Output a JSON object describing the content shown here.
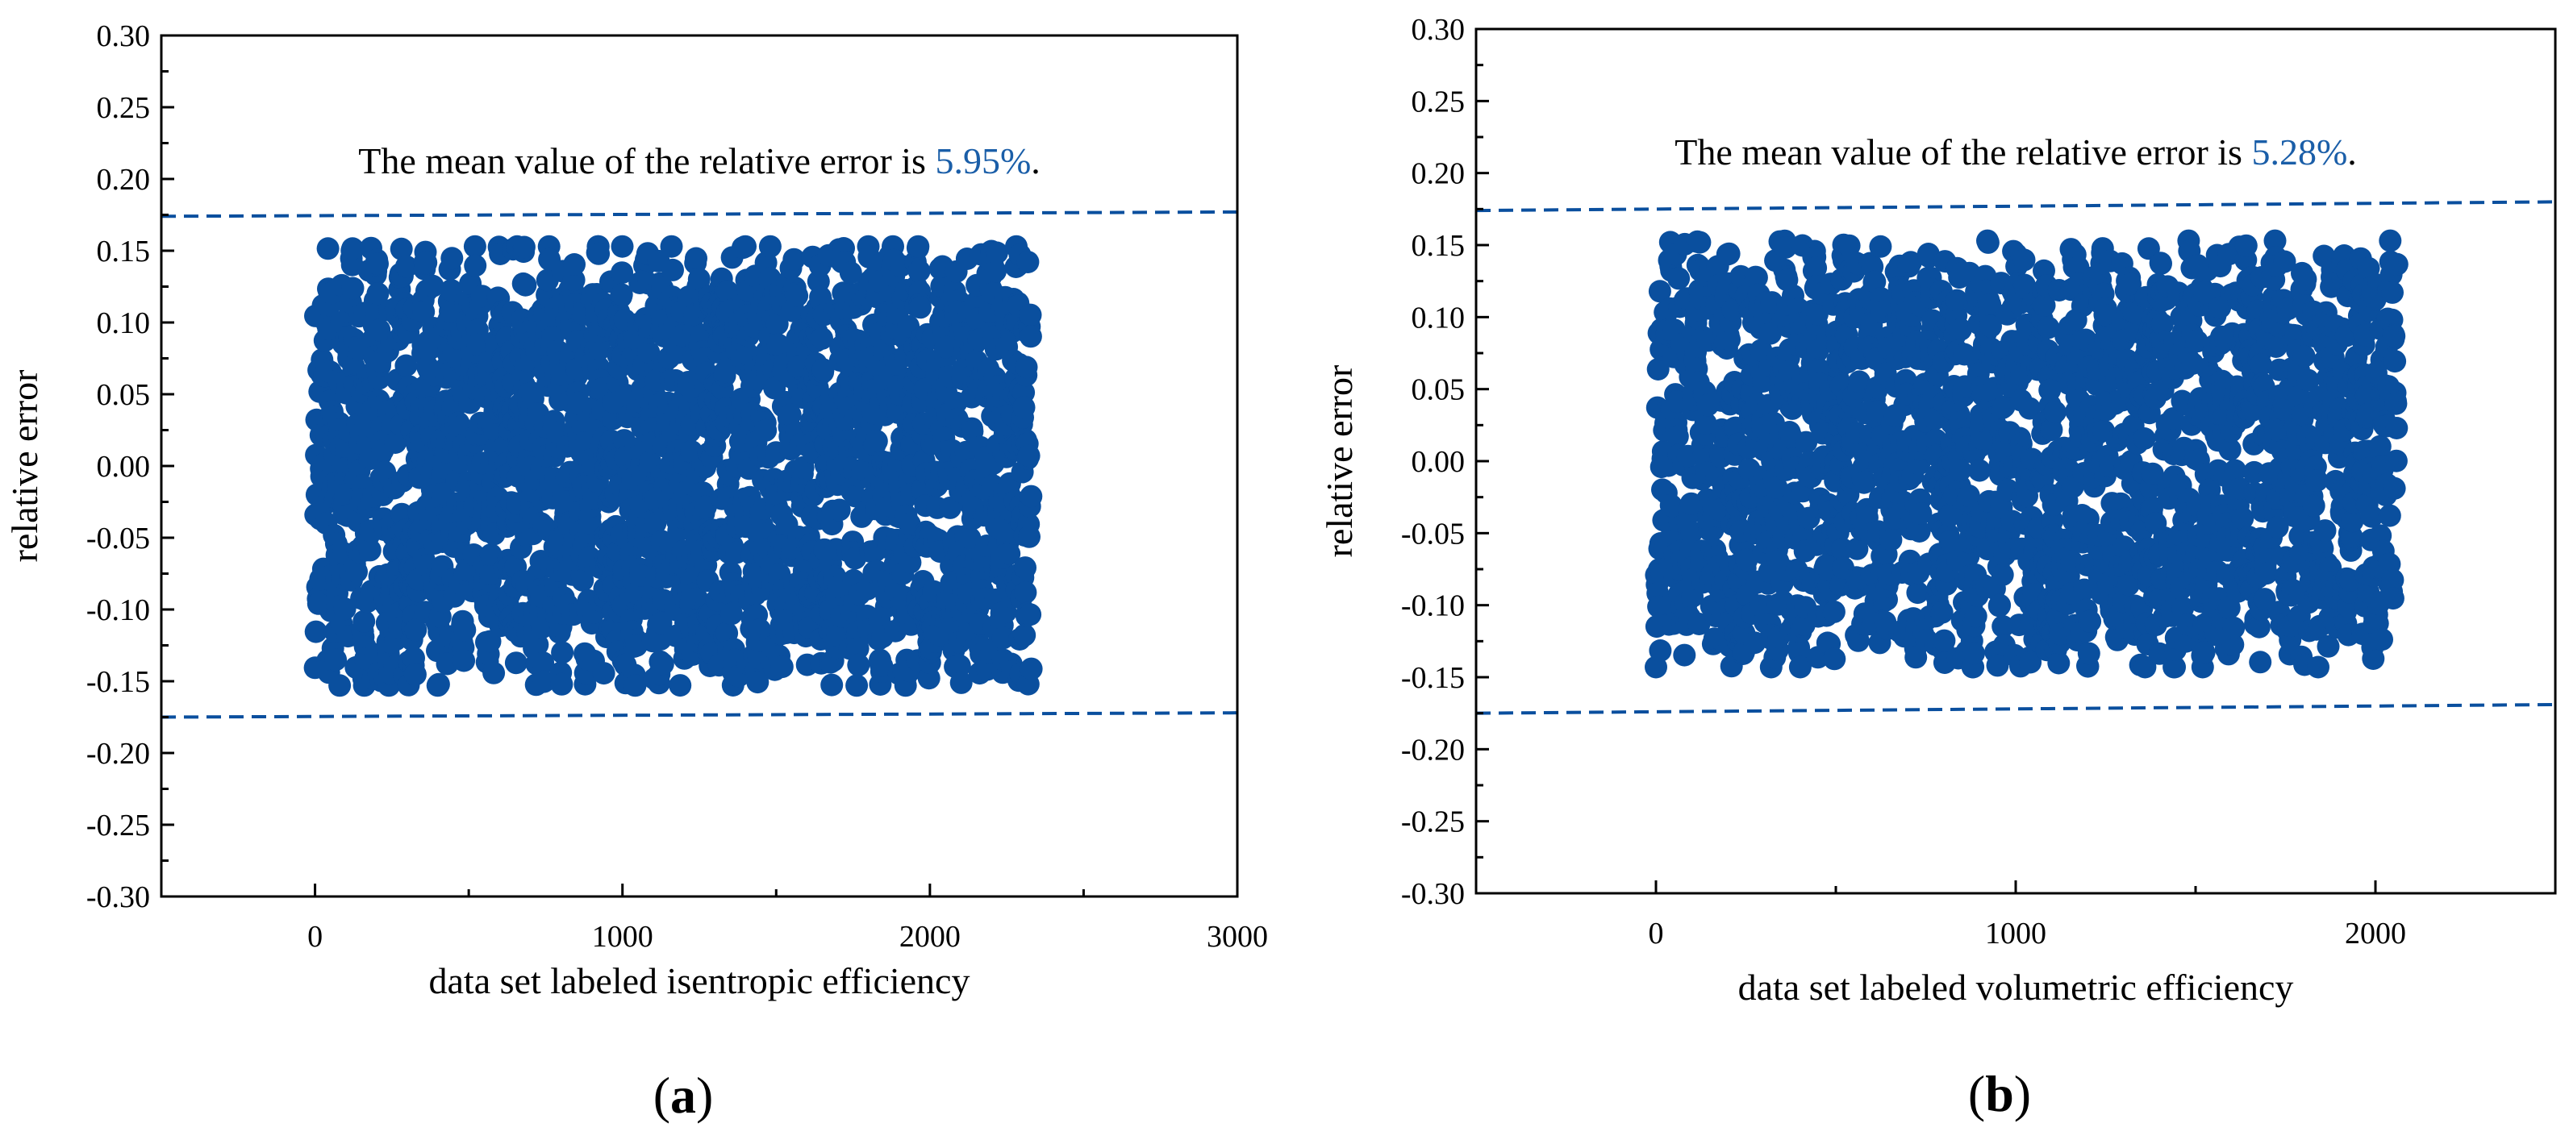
{
  "chart_data": [
    {
      "type": "scatter",
      "panel_label": "a",
      "xlabel": "data set labeled isentropic efficiency",
      "ylabel": "relative error",
      "xlim": [
        -500,
        3000
      ],
      "ylim": [
        -0.3,
        0.3
      ],
      "xticks": [
        0,
        1000,
        2000,
        3000
      ],
      "xtick_labels": [
        "0",
        "1000",
        "2000",
        "3000"
      ],
      "yticks": [
        -0.3,
        -0.25,
        -0.2,
        -0.15,
        -0.1,
        -0.05,
        0.0,
        0.05,
        0.1,
        0.15,
        0.2,
        0.25,
        0.3
      ],
      "ytick_labels": [
        "-0.30",
        "-0.25",
        "-0.20",
        "-0.15",
        "-0.10",
        "-0.05",
        "0.00",
        "0.05",
        "0.10",
        "0.15",
        "0.20",
        "0.25",
        "0.30"
      ],
      "annotation_prefix": "The mean value of the relative error is ",
      "annotation_value": "5.95%",
      "annotation_suffix": ".",
      "marker_color": "#0a4f9e",
      "annotation_value_color": "#1a5ea8",
      "upper_bound": [
        [
          -500,
          0.174
        ],
        [
          3000,
          0.177
        ]
      ],
      "lower_bound": [
        [
          -500,
          -0.175
        ],
        [
          3000,
          -0.172
        ]
      ],
      "n_points": 2330,
      "x_data_range": [
        0,
        2330
      ],
      "y_data_range": [
        -0.153,
        0.153
      ],
      "seed": 7,
      "grid": false
    },
    {
      "type": "scatter",
      "panel_label": "b",
      "xlabel": "data set labeled volumetric efficiency",
      "ylabel": "relative error",
      "xlim": [
        -500,
        2500
      ],
      "ylim": [
        -0.3,
        0.3
      ],
      "xticks": [
        0,
        1000,
        2000
      ],
      "xtick_labels": [
        "0",
        "1000",
        "2000"
      ],
      "yticks": [
        -0.3,
        -0.25,
        -0.2,
        -0.15,
        -0.1,
        -0.05,
        0.0,
        0.05,
        0.1,
        0.15,
        0.2,
        0.25,
        0.3
      ],
      "ytick_labels": [
        "-0.30",
        "-0.25",
        "-0.20",
        "-0.15",
        "-0.10",
        "-0.05",
        "0.00",
        "0.05",
        "0.10",
        "0.15",
        "0.20",
        "0.25",
        "0.30"
      ],
      "annotation_prefix": "The mean value of the relative error is ",
      "annotation_value": "5.28%",
      "annotation_suffix": ".",
      "marker_color": "#0a4f9e",
      "annotation_value_color": "#1a5ea8",
      "upper_bound": [
        [
          -500,
          0.174
        ],
        [
          2500,
          0.18
        ]
      ],
      "lower_bound": [
        [
          -500,
          -0.175
        ],
        [
          2500,
          -0.169
        ]
      ],
      "n_points": 2060,
      "x_data_range": [
        0,
        2060
      ],
      "y_data_range": [
        -0.143,
        0.153
      ],
      "seed": 13,
      "grid": false
    }
  ]
}
